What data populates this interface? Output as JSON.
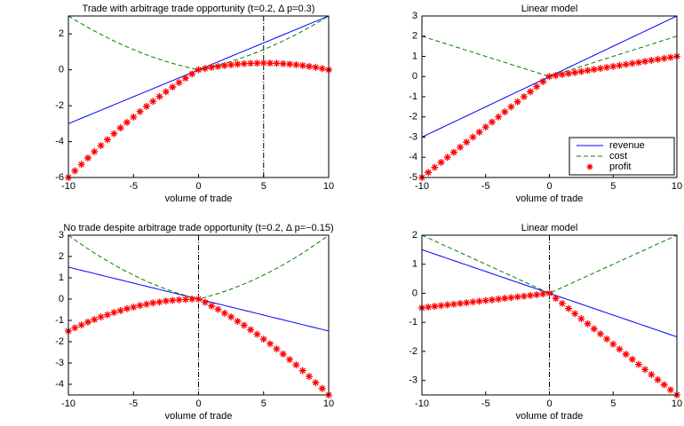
{
  "chart_data": [
    {
      "type": "line",
      "title": "Trade with arbitrage trade opportunity (t=0.2, Δ p=0.3)",
      "x_label": "volume of trade",
      "x": [
        -10,
        -9.5,
        -9,
        -8.5,
        -8,
        -7.5,
        -7,
        -6.5,
        -6,
        -5.5,
        -5,
        -4.5,
        -4,
        -3.5,
        -3,
        -2.5,
        -2,
        -1.5,
        -1,
        -0.5,
        0,
        0.5,
        1,
        1.5,
        2,
        2.5,
        3,
        3.5,
        4,
        4.5,
        5,
        5.5,
        6,
        6.5,
        7,
        7.5,
        8,
        8.5,
        9,
        9.5,
        10
      ],
      "series": [
        {
          "name": "revenue",
          "color": "#0000ff",
          "line": "solid",
          "values": [
            -3,
            -2.85,
            -2.7,
            -2.55,
            -2.4,
            -2.25,
            -2.1,
            -1.95,
            -1.8,
            -1.65,
            -1.5,
            -1.35,
            -1.2,
            -1.05,
            -0.9,
            -0.75,
            -0.6,
            -0.45,
            -0.3,
            -0.15,
            0,
            0.15,
            0.3,
            0.45,
            0.6,
            0.75,
            0.9,
            1.05,
            1.2,
            1.35,
            1.5,
            1.65,
            1.8,
            1.95,
            2.1,
            2.25,
            2.4,
            2.55,
            2.7,
            2.85,
            3
          ]
        },
        {
          "name": "cost",
          "color": "#008000",
          "line": "dashed",
          "values": [
            3,
            2.78,
            2.57,
            2.36,
            2.16,
            1.97,
            1.79,
            1.61,
            1.44,
            1.28,
            1.13,
            0.98,
            0.84,
            0.71,
            0.59,
            0.47,
            0.36,
            0.26,
            0.17,
            0.08,
            0,
            0.08,
            0.17,
            0.26,
            0.36,
            0.47,
            0.59,
            0.71,
            0.84,
            0.98,
            1.13,
            1.28,
            1.44,
            1.61,
            1.79,
            1.97,
            2.16,
            2.36,
            2.57,
            2.78,
            3
          ]
        },
        {
          "name": "profit",
          "color": "#ff0000",
          "line": "none",
          "marker": "star",
          "values": [
            -6,
            -5.63,
            -5.27,
            -4.91,
            -4.56,
            -4.22,
            -3.89,
            -3.56,
            -3.24,
            -2.93,
            -2.63,
            -2.33,
            -2.04,
            -1.76,
            -1.49,
            -1.22,
            -0.96,
            -0.71,
            -0.47,
            -0.23,
            0,
            0.07,
            0.14,
            0.19,
            0.24,
            0.28,
            0.32,
            0.34,
            0.36,
            0.37,
            0.38,
            0.37,
            0.36,
            0.34,
            0.32,
            0.28,
            0.24,
            0.19,
            0.14,
            0.07,
            0
          ]
        }
      ],
      "vline": 5,
      "xlim": [
        -10,
        10
      ],
      "xticks": [
        -10,
        -5,
        0,
        5,
        10
      ],
      "ylim": [
        -6,
        3
      ],
      "yticks": [
        -6,
        -4,
        -2,
        0,
        2
      ]
    },
    {
      "type": "line",
      "title": "Linear model",
      "x_label": "volume of trade",
      "x": [
        -10,
        -9.5,
        -9,
        -8.5,
        -8,
        -7.5,
        -7,
        -6.5,
        -6,
        -5.5,
        -5,
        -4.5,
        -4,
        -3.5,
        -3,
        -2.5,
        -2,
        -1.5,
        -1,
        -0.5,
        0,
        0.5,
        1,
        1.5,
        2,
        2.5,
        3,
        3.5,
        4,
        4.5,
        5,
        5.5,
        6,
        6.5,
        7,
        7.5,
        8,
        8.5,
        9,
        9.5,
        10
      ],
      "series": [
        {
          "name": "revenue",
          "color": "#0000ff",
          "line": "solid",
          "values": [
            -3,
            -2.85,
            -2.7,
            -2.55,
            -2.4,
            -2.25,
            -2.1,
            -1.95,
            -1.8,
            -1.65,
            -1.5,
            -1.35,
            -1.2,
            -1.05,
            -0.9,
            -0.75,
            -0.6,
            -0.45,
            -0.3,
            -0.15,
            0,
            0.15,
            0.3,
            0.45,
            0.6,
            0.75,
            0.9,
            1.05,
            1.2,
            1.35,
            1.5,
            1.65,
            1.8,
            1.95,
            2.1,
            2.25,
            2.4,
            2.55,
            2.7,
            2.85,
            3
          ]
        },
        {
          "name": "cost",
          "color": "#008000",
          "line": "dashed",
          "values": [
            2,
            1.9,
            1.8,
            1.7,
            1.6,
            1.5,
            1.4,
            1.3,
            1.2,
            1.1,
            1,
            0.9,
            0.8,
            0.7,
            0.6,
            0.5,
            0.4,
            0.3,
            0.2,
            0.1,
            0,
            0.1,
            0.2,
            0.3,
            0.4,
            0.5,
            0.6,
            0.7,
            0.8,
            0.9,
            1,
            1.1,
            1.2,
            1.3,
            1.4,
            1.5,
            1.6,
            1.7,
            1.8,
            1.9,
            2
          ]
        },
        {
          "name": "profit",
          "color": "#ff0000",
          "line": "none",
          "marker": "star",
          "values": [
            -5,
            -4.75,
            -4.5,
            -4.25,
            -4,
            -3.75,
            -3.5,
            -3.25,
            -3,
            -2.75,
            -2.5,
            -2.25,
            -2,
            -1.75,
            -1.5,
            -1.25,
            -1,
            -0.75,
            -0.5,
            -0.25,
            0,
            0.05,
            0.1,
            0.15,
            0.2,
            0.25,
            0.3,
            0.35,
            0.4,
            0.45,
            0.5,
            0.55,
            0.6,
            0.65,
            0.7,
            0.75,
            0.8,
            0.85,
            0.9,
            0.95,
            1
          ]
        }
      ],
      "legend": "lower right",
      "xlim": [
        -10,
        10
      ],
      "xticks": [
        -10,
        -5,
        0,
        5,
        10
      ],
      "ylim": [
        -5,
        3
      ],
      "yticks": [
        -5,
        -4,
        -3,
        -2,
        -1,
        0,
        1,
        2,
        3
      ]
    },
    {
      "type": "line",
      "title": "No trade despite arbitrage trade opportunity (t=0.2, Δ p=−0.15)",
      "x_label": "volume of trade",
      "x": [
        -10,
        -9.5,
        -9,
        -8.5,
        -8,
        -7.5,
        -7,
        -6.5,
        -6,
        -5.5,
        -5,
        -4.5,
        -4,
        -3.5,
        -3,
        -2.5,
        -2,
        -1.5,
        -1,
        -0.5,
        0,
        0.5,
        1,
        1.5,
        2,
        2.5,
        3,
        3.5,
        4,
        4.5,
        5,
        5.5,
        6,
        6.5,
        7,
        7.5,
        8,
        8.5,
        9,
        9.5,
        10
      ],
      "series": [
        {
          "name": "revenue",
          "color": "#0000ff",
          "line": "solid",
          "values": [
            1.5,
            1.425,
            1.35,
            1.275,
            1.2,
            1.125,
            1.05,
            0.975,
            0.9,
            0.825,
            0.75,
            0.675,
            0.6,
            0.525,
            0.45,
            0.375,
            0.3,
            0.225,
            0.15,
            0.075,
            0,
            -0.075,
            -0.15,
            -0.225,
            -0.3,
            -0.375,
            -0.45,
            -0.525,
            -0.6,
            -0.675,
            -0.75,
            -0.825,
            -0.9,
            -0.975,
            -1.05,
            -1.125,
            -1.2,
            -1.275,
            -1.35,
            -1.425,
            -1.5
          ]
        },
        {
          "name": "cost",
          "color": "#008000",
          "line": "dashed",
          "values": [
            3,
            2.78,
            2.57,
            2.36,
            2.16,
            1.97,
            1.79,
            1.61,
            1.44,
            1.28,
            1.13,
            0.98,
            0.84,
            0.71,
            0.59,
            0.47,
            0.36,
            0.26,
            0.17,
            0.08,
            0,
            0.08,
            0.17,
            0.26,
            0.36,
            0.47,
            0.59,
            0.71,
            0.84,
            0.98,
            1.13,
            1.28,
            1.44,
            1.61,
            1.79,
            1.97,
            2.16,
            2.36,
            2.57,
            2.78,
            3
          ]
        },
        {
          "name": "profit",
          "color": "#ff0000",
          "line": "none",
          "marker": "star",
          "values": [
            -1.5,
            -1.35,
            -1.22,
            -1.08,
            -0.96,
            -0.84,
            -0.74,
            -0.63,
            -0.54,
            -0.45,
            -0.38,
            -0.3,
            -0.24,
            -0.18,
            -0.14,
            -0.09,
            -0.06,
            -0.03,
            -0.02,
            0,
            0,
            -0.15,
            -0.32,
            -0.48,
            -0.66,
            -0.84,
            -1.04,
            -1.23,
            -1.44,
            -1.65,
            -1.88,
            -2.1,
            -2.34,
            -2.58,
            -2.84,
            -3.09,
            -3.36,
            -3.63,
            -3.92,
            -4.2,
            -4.5
          ]
        }
      ],
      "vline": 0,
      "xlim": [
        -10,
        10
      ],
      "xticks": [
        -10,
        -5,
        0,
        5,
        10
      ],
      "ylim": [
        -4.5,
        3
      ],
      "yticks": [
        -4,
        -3,
        -2,
        -1,
        0,
        1,
        2,
        3
      ]
    },
    {
      "type": "line",
      "title": "Linear model",
      "x_label": "volume of trade",
      "x": [
        -10,
        -9.5,
        -9,
        -8.5,
        -8,
        -7.5,
        -7,
        -6.5,
        -6,
        -5.5,
        -5,
        -4.5,
        -4,
        -3.5,
        -3,
        -2.5,
        -2,
        -1.5,
        -1,
        -0.5,
        0,
        0.5,
        1,
        1.5,
        2,
        2.5,
        3,
        3.5,
        4,
        4.5,
        5,
        5.5,
        6,
        6.5,
        7,
        7.5,
        8,
        8.5,
        9,
        9.5,
        10
      ],
      "series": [
        {
          "name": "revenue",
          "color": "#0000ff",
          "line": "solid",
          "values": [
            1.5,
            1.425,
            1.35,
            1.275,
            1.2,
            1.125,
            1.05,
            0.975,
            0.9,
            0.825,
            0.75,
            0.675,
            0.6,
            0.525,
            0.45,
            0.375,
            0.3,
            0.225,
            0.15,
            0.075,
            0,
            -0.075,
            -0.15,
            -0.225,
            -0.3,
            -0.375,
            -0.45,
            -0.525,
            -0.6,
            -0.675,
            -0.75,
            -0.825,
            -0.9,
            -0.975,
            -1.05,
            -1.125,
            -1.2,
            -1.275,
            -1.35,
            -1.425,
            -1.5
          ]
        },
        {
          "name": "cost",
          "color": "#008000",
          "line": "dashed",
          "values": [
            2,
            1.9,
            1.8,
            1.7,
            1.6,
            1.5,
            1.4,
            1.3,
            1.2,
            1.1,
            1,
            0.9,
            0.8,
            0.7,
            0.6,
            0.5,
            0.4,
            0.3,
            0.2,
            0.1,
            0,
            0.1,
            0.2,
            0.3,
            0.4,
            0.5,
            0.6,
            0.7,
            0.8,
            0.9,
            1,
            1.1,
            1.2,
            1.3,
            1.4,
            1.5,
            1.6,
            1.7,
            1.8,
            1.9,
            2
          ]
        },
        {
          "name": "profit",
          "color": "#ff0000",
          "line": "none",
          "marker": "star",
          "values": [
            -0.5,
            -0.475,
            -0.45,
            -0.425,
            -0.4,
            -0.375,
            -0.35,
            -0.325,
            -0.3,
            -0.275,
            -0.25,
            -0.225,
            -0.2,
            -0.175,
            -0.15,
            -0.125,
            -0.1,
            -0.075,
            -0.05,
            -0.025,
            0,
            -0.175,
            -0.35,
            -0.525,
            -0.7,
            -0.875,
            -1.05,
            -1.225,
            -1.4,
            -1.575,
            -1.75,
            -1.925,
            -2.1,
            -2.275,
            -2.45,
            -2.625,
            -2.8,
            -2.975,
            -3.15,
            -3.325,
            -3.5
          ]
        }
      ],
      "vline": 0,
      "xlim": [
        -10,
        10
      ],
      "xticks": [
        -10,
        -5,
        0,
        5,
        10
      ],
      "ylim": [
        -3.5,
        2
      ],
      "yticks": [
        -3,
        -2,
        -1,
        0,
        1,
        2
      ]
    }
  ]
}
